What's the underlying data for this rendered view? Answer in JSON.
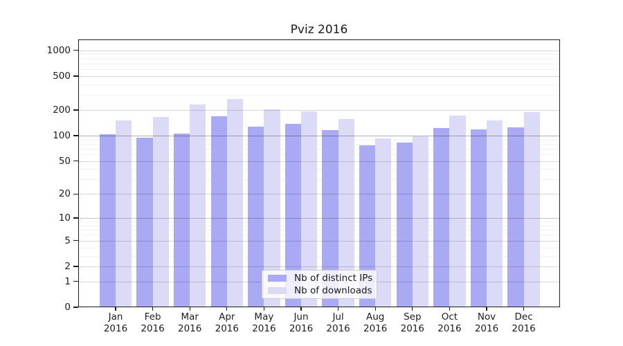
{
  "title": "Pviz 2016",
  "chart_data": {
    "type": "bar",
    "categories": [
      "Jan",
      "Feb",
      "Mar",
      "Apr",
      "May",
      "Jun",
      "Jul",
      "Aug",
      "Sep",
      "Oct",
      "Nov",
      "Dec"
    ],
    "category_year": "2016",
    "series": [
      {
        "name": "Nb of distinct IPs",
        "color": "#a9a9f4",
        "values": [
          103,
          95,
          106,
          168,
          127,
          138,
          116,
          77,
          83,
          123,
          118,
          125
        ]
      },
      {
        "name": "Nb of downloads",
        "color": "#dbdbf8",
        "values": [
          152,
          166,
          232,
          268,
          204,
          192,
          156,
          93,
          99,
          171,
          152,
          188
        ]
      }
    ],
    "y_axis": {
      "scale": "symlog",
      "ticks": [
        0,
        1,
        2,
        5,
        10,
        20,
        50,
        100,
        200,
        500,
        1000
      ],
      "minor_gridlines": [
        3,
        4,
        6,
        7,
        8,
        9,
        30,
        40,
        60,
        70,
        80,
        90,
        300,
        400,
        600,
        700,
        800,
        900
      ],
      "top_value": 1330
    },
    "legend_position": "lower center",
    "grid": "on",
    "colors": {
      "major_gridline": "rgba(0,0,0,0.16)",
      "emphasis_gridline": "rgba(0,0,0,0.30)",
      "minor_gridline": "rgba(0,0,0,0.05)",
      "axis": "#1c1c1c"
    }
  }
}
